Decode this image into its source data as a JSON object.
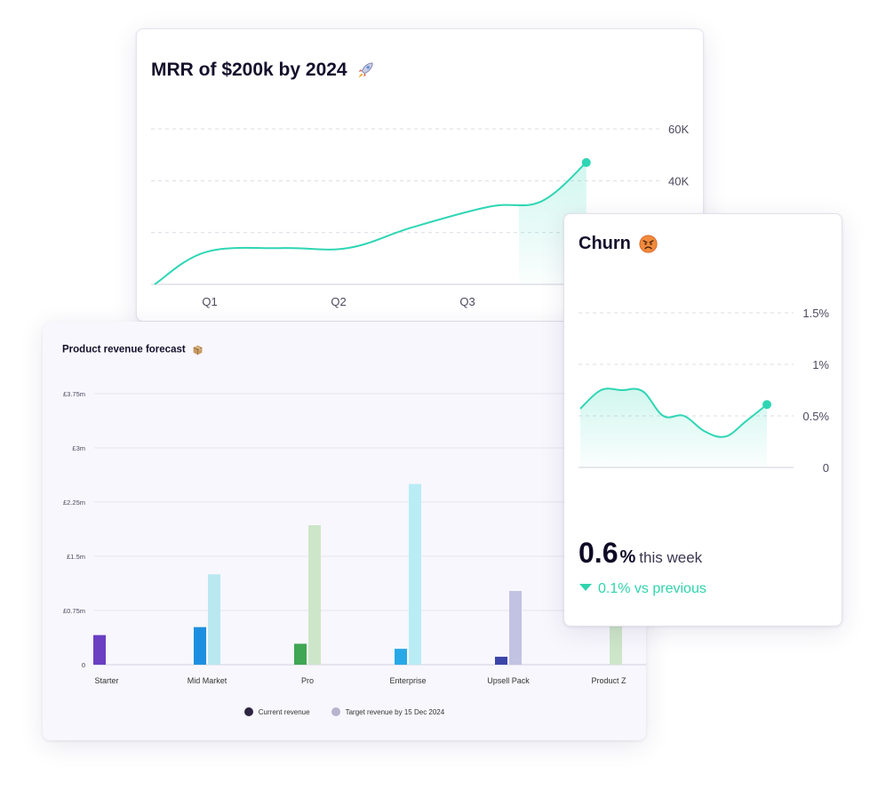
{
  "mrr": {
    "title": "MRR of $200k by 2024",
    "title_icon": "rocket-icon"
  },
  "churn": {
    "title": "Churn",
    "title_icon": "angry-face-icon",
    "value": "0.6",
    "unit": "%",
    "period": "this week",
    "change_text": "0.1% vs previous",
    "change_icon": "triangle-down-icon"
  },
  "product": {
    "title": "Product revenue forecast",
    "title_icon": "package-icon"
  },
  "chart_data": [
    {
      "id": "mrr",
      "type": "area",
      "title": "MRR of $200k by 2024",
      "categories": [
        "Q1",
        "Q2",
        "Q3"
      ],
      "y_ticks": [
        "60K",
        "40K"
      ],
      "ylim": [
        0,
        60000
      ],
      "grid": true,
      "line_color": "#2ed6b4",
      "series": [
        {
          "x": [
            0.0,
            0.4,
            1.0,
            1.5,
            2.0,
            2.6,
            3.0,
            3.35
          ],
          "values": [
            0,
            12500,
            14000,
            14000,
            22000,
            30000,
            32000,
            47000
          ]
        }
      ]
    },
    {
      "id": "churn",
      "type": "area",
      "title": "Churn",
      "y_ticks": [
        "1.5%",
        "1%",
        "0.5%",
        "0"
      ],
      "ylim": [
        0,
        1.5
      ],
      "grid": true,
      "line_color": "#2ed6b4",
      "series": [
        {
          "x": [
            0,
            1,
            2,
            3,
            4,
            5,
            6,
            7,
            8,
            9
          ],
          "values": [
            0.57,
            0.75,
            0.75,
            0.74,
            0.5,
            0.5,
            0.35,
            0.3,
            0.45,
            0.61
          ]
        }
      ]
    },
    {
      "id": "product",
      "type": "bar",
      "title": "Product revenue forecast",
      "categories": [
        "Starter",
        "Mid Market",
        "Pro",
        "Enterprise",
        "Upsell Pack",
        "Product Z"
      ],
      "y_ticks": [
        "£3.75m",
        "£3m",
        "£2.25m",
        "£1.5m",
        "£0.75m",
        "0"
      ],
      "ylim": [
        0,
        3.75
      ],
      "grid": true,
      "series": [
        {
          "name": "Current revenue",
          "values": [
            0.41,
            0.52,
            0.29,
            0.22,
            0.11,
            null
          ],
          "colors": [
            "#6a3fc2",
            "#1e8fe0",
            "#3fa653",
            "#26a9e6",
            "#3b45a8",
            "#b8e3c0"
          ]
        },
        {
          "name": "Target revenue by 15 Dec 2024",
          "values": [
            null,
            1.25,
            1.93,
            2.5,
            1.02,
            0.9
          ],
          "colors": [
            "#b9e8f0",
            "#b9e8f0",
            "#cde6c9",
            "#b9ecf5",
            "#c2c3e2",
            "#cde6c9"
          ]
        }
      ],
      "legend": [
        {
          "label": "Current revenue",
          "color": "#2d2542"
        },
        {
          "label": "Target revenue by 15 Dec 2024",
          "color": "#b7b4cf"
        }
      ],
      "legend_position": "bottom"
    }
  ]
}
